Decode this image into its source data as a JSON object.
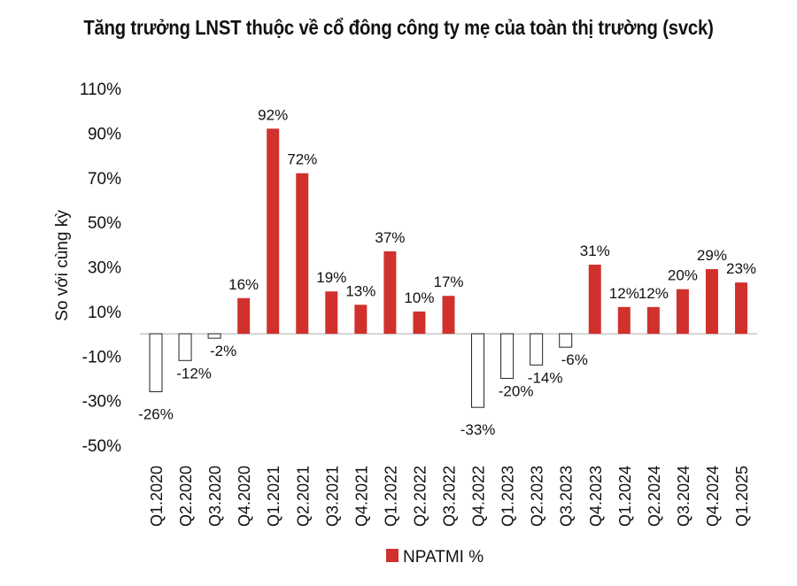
{
  "chart_data": {
    "type": "bar",
    "title": "Tăng trưởng LNST thuộc về cổ đông công ty mẹ của toàn thị trường (svck)",
    "xlabel": "",
    "ylabel": "So với cùng kỳ",
    "ylim": [
      -50,
      110
    ],
    "yticks": [
      -50,
      -30,
      -10,
      10,
      30,
      50,
      70,
      90,
      110
    ],
    "ytick_labels": [
      "-50%",
      "-30%",
      "-10%",
      "10%",
      "30%",
      "50%",
      "70%",
      "90%",
      "110%"
    ],
    "grid": false,
    "legend_position": "bottom",
    "categories": [
      "Q1.2020",
      "Q2.2020",
      "Q3.2020",
      "Q4.2020",
      "Q1.2021",
      "Q2.2021",
      "Q3.2021",
      "Q4.2021",
      "Q1.2022",
      "Q2.2022",
      "Q3.2022",
      "Q4.2022",
      "Q1.2023",
      "Q2.2023",
      "Q3.2023",
      "Q4.2023",
      "Q1.2024",
      "Q2.2024",
      "Q3.2024",
      "Q4.2024",
      "Q1.2025"
    ],
    "series": [
      {
        "name": "NPATMI %",
        "values": [
          -26,
          -12,
          -2,
          16,
          92,
          72,
          19,
          13,
          37,
          10,
          17,
          -33,
          -20,
          -14,
          -6,
          31,
          12,
          12,
          20,
          29,
          23
        ]
      }
    ],
    "data_labels": [
      "-26%",
      "-12%",
      "-2%",
      "16%",
      "92%",
      "72%",
      "19%",
      "13%",
      "37%",
      "10%",
      "17%",
      "-33%",
      "-20%",
      "-14%",
      "-6%",
      "31%",
      "12%",
      "12%",
      "20%",
      "29%",
      "23%"
    ],
    "colors": {
      "positive": "#d0312d",
      "negative_fill": "#ffffff",
      "negative_stroke": "#222222",
      "zero_line": "#c8c8c8"
    }
  }
}
